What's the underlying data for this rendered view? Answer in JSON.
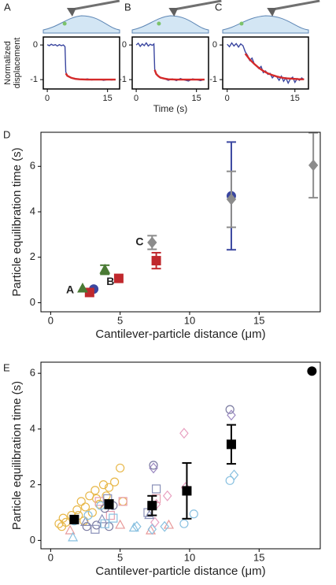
{
  "chart_data": [
    {
      "type": "line",
      "label": "A",
      "ylabel_lines": [
        "Normalized",
        "displacement"
      ],
      "xlim": [
        -1,
        18
      ],
      "xticks": [
        0,
        15
      ],
      "ylim": [
        -1.27,
        0.23
      ],
      "yticks": [
        0,
        -1
      ],
      "series": [
        {
          "color": "#3b47a0",
          "x": [
            0,
            0.5,
            1,
            1.5,
            2,
            2.5,
            3,
            3.5,
            4,
            4.4,
            4.6,
            5,
            6,
            7,
            8,
            9,
            10,
            11,
            12,
            13,
            14,
            15,
            16,
            17
          ],
          "values": [
            0.01,
            -0.02,
            0.02,
            -0.01,
            0.01,
            -0.03,
            0.01,
            -0.02,
            0.0,
            -0.05,
            -0.78,
            -0.88,
            -0.95,
            -0.97,
            -0.99,
            -1.0,
            -0.98,
            -1.01,
            -1.0,
            -0.99,
            -1.02,
            -1.0,
            -1.01,
            -1.0
          ]
        },
        {
          "color": "#d42a2a",
          "x": [
            4.6,
            5,
            6,
            7,
            8,
            10,
            12,
            14,
            16,
            17
          ],
          "values": [
            -0.82,
            -0.89,
            -0.95,
            -0.98,
            -0.99,
            -1.0,
            -1.0,
            -1.0,
            -1.0,
            -1.0
          ]
        }
      ]
    },
    {
      "type": "line",
      "label": "B",
      "xlabel": "Time (s)",
      "xlim": [
        -1,
        18
      ],
      "xticks": [
        0,
        15
      ],
      "ylim": [
        -1.27,
        0.23
      ],
      "yticks": [
        0,
        -1
      ],
      "series": [
        {
          "color": "#3b47a0",
          "x": [
            0,
            0.5,
            1,
            1.5,
            2,
            2.5,
            3,
            3.5,
            4,
            4.4,
            4.6,
            5,
            5.5,
            6,
            7,
            8,
            9,
            10,
            11,
            12,
            13,
            14,
            15,
            16,
            17
          ],
          "values": [
            0.0,
            0.05,
            -0.04,
            0.03,
            -0.02,
            0.06,
            -0.03,
            0.02,
            -0.01,
            0.03,
            -0.7,
            -0.85,
            -0.9,
            -0.95,
            -0.97,
            -1.02,
            -0.98,
            -1.03,
            -0.97,
            -1.01,
            -1.04,
            -0.98,
            -1.0,
            -1.03,
            -0.99
          ]
        },
        {
          "color": "#d42a2a",
          "x": [
            4.6,
            5,
            5.5,
            6,
            7,
            8,
            10,
            12,
            14,
            16,
            17
          ],
          "values": [
            -0.72,
            -0.84,
            -0.9,
            -0.94,
            -0.97,
            -0.99,
            -1.0,
            -1.0,
            -1.0,
            -1.0,
            -1.0
          ]
        }
      ]
    },
    {
      "type": "line",
      "label": "C",
      "xlim": [
        -1,
        18
      ],
      "xticks": [
        0,
        15
      ],
      "ylim": [
        -1.27,
        0.23
      ],
      "yticks": [
        0,
        -1
      ],
      "series": [
        {
          "color": "#3b47a0",
          "x": [
            0,
            0.5,
            1,
            1.5,
            2,
            2.5,
            3,
            3.5,
            4,
            4.5,
            5,
            5.5,
            6,
            6.5,
            7,
            7.5,
            8,
            8.5,
            9,
            9.5,
            10,
            10.5,
            11,
            11.5,
            12,
            12.5,
            13,
            13.5,
            14,
            14.5,
            15,
            15.5,
            16,
            16.5,
            17
          ],
          "values": [
            0.02,
            -0.05,
            0.06,
            -0.03,
            0.04,
            -0.06,
            0.03,
            -0.02,
            -0.2,
            -0.3,
            -0.45,
            -0.38,
            -0.55,
            -0.6,
            -0.68,
            -0.62,
            -0.8,
            -0.75,
            -0.85,
            -0.82,
            -0.95,
            -0.88,
            -0.92,
            -1.02,
            -0.9,
            -1.05,
            -0.95,
            -1.1,
            -0.98,
            -0.93,
            -1.08,
            -0.97,
            -1.02,
            -0.95,
            -1.0
          ]
        },
        {
          "color": "#d42a2a",
          "x": [
            4,
            5,
            6,
            7,
            8,
            9,
            10,
            11,
            12,
            13,
            14,
            15,
            16,
            17
          ],
          "values": [
            -0.25,
            -0.42,
            -0.55,
            -0.66,
            -0.75,
            -0.82,
            -0.87,
            -0.91,
            -0.94,
            -0.96,
            -0.97,
            -0.98,
            -0.99,
            -0.99
          ]
        }
      ]
    },
    {
      "type": "scatter",
      "label": "D",
      "xlabel": "Cantilever-particle distance (μm)",
      "ylabel": "Particle equilibration time (s)",
      "annotations": [
        "A",
        "B",
        "C"
      ],
      "xlim": [
        -0.7,
        19.4
      ],
      "xticks": [
        0,
        5,
        10,
        15
      ],
      "ylim": [
        -0.4,
        7.5
      ],
      "yticks": [
        0,
        2,
        4,
        6
      ],
      "series": [
        {
          "color": "#3b47a0",
          "marker": "circle",
          "filled": true,
          "x": [
            3.1,
            13.0
          ],
          "values": [
            0.6,
            4.7
          ],
          "errors": [
            null,
            2.37
          ]
        },
        {
          "color": "#c0282d",
          "marker": "square",
          "filled": true,
          "x": [
            2.8,
            4.9,
            7.6
          ],
          "values": [
            0.45,
            1.07,
            1.85
          ],
          "errors": [
            null,
            null,
            0.35
          ]
        },
        {
          "color": "#4a7a34",
          "marker": "triangle",
          "filled": true,
          "x": [
            2.3,
            3.9
          ],
          "values": [
            0.62,
            1.45
          ],
          "errors": [
            null,
            0.2
          ]
        },
        {
          "color": "#8c8c8c",
          "marker": "diamond",
          "filled": true,
          "x": [
            7.3,
            13.0,
            18.9
          ],
          "values": [
            2.65,
            4.55,
            6.05
          ],
          "errors": [
            0.3,
            1.23,
            1.43
          ]
        }
      ]
    },
    {
      "type": "scatter",
      "label": "E",
      "xlabel": "Cantilever-particle distance (μm)",
      "ylabel": "Particle equilibration time (s)",
      "xlim": [
        -0.7,
        19.4
      ],
      "xticks": [
        0,
        5,
        10,
        15
      ],
      "ylim": [
        -0.3,
        6.4
      ],
      "yticks": [
        0,
        2,
        4,
        6
      ],
      "series": [
        {
          "color": "#e8b84a",
          "marker": "circle",
          "filled": false,
          "x": [
            0.6,
            0.8,
            0.9,
            1.1,
            1.5,
            1.9,
            2.0,
            2.2,
            2.4,
            2.5,
            2.8,
            3.0,
            3.2,
            3.3,
            3.5,
            3.8,
            4.0,
            4.2,
            4.6,
            5.0,
            5.2
          ],
          "values": [
            0.6,
            0.5,
            0.8,
            0.65,
            0.9,
            1.1,
            0.9,
            1.4,
            0.7,
            1.2,
            1.6,
            1.0,
            1.8,
            1.5,
            1.3,
            2.0,
            1.6,
            1.9,
            2.1,
            2.6,
            1.4
          ]
        },
        {
          "color": "#e8a0b0",
          "marker": "square",
          "filled": false,
          "x": [
            3.5,
            4.3,
            5.2,
            7.6
          ],
          "values": [
            1.4,
            0.9,
            1.4,
            1.5
          ]
        },
        {
          "color": "#e8a0c0",
          "marker": "diamond",
          "filled": false,
          "x": [
            7.5,
            7.6,
            8.4,
            9.6,
            9.7
          ],
          "values": [
            0.65,
            1.3,
            1.6,
            3.85,
            1.9
          ]
        },
        {
          "color": "#e89a9a",
          "marker": "triangle",
          "filled": false,
          "x": [
            1.4,
            5.0,
            7.2,
            8.5
          ],
          "values": [
            0.35,
            0.55,
            0.35,
            0.55
          ]
        },
        {
          "color": "#7a7aa0",
          "marker": "circle",
          "filled": false,
          "x": [
            2.6,
            3.3,
            3.9,
            4.2,
            4.5,
            7.4,
            12.9
          ],
          "values": [
            0.5,
            0.55,
            1.15,
            0.5,
            1.25,
            2.7,
            4.7
          ]
        },
        {
          "color": "#8a90b8",
          "marker": "square",
          "filled": false,
          "x": [
            3.2,
            4.1,
            7.0,
            7.6
          ],
          "values": [
            0.4,
            1.5,
            1.0,
            1.85
          ]
        },
        {
          "color": "#8a90b8",
          "marker": "triangle",
          "filled": false,
          "x": [
            2.5,
            3.7,
            7.1
          ],
          "values": [
            0.65,
            0.75,
            0.9
          ]
        },
        {
          "color": "#9a88c0",
          "marker": "diamond",
          "filled": false,
          "x": [
            7.4,
            13.0
          ],
          "values": [
            2.6,
            4.5
          ]
        },
        {
          "color": "#88c0e0",
          "marker": "circle",
          "filled": false,
          "x": [
            1.7,
            2.7,
            3.6,
            9.6,
            10.3,
            12.9
          ],
          "values": [
            0.7,
            0.9,
            1.25,
            0.6,
            0.95,
            2.15
          ]
        },
        {
          "color": "#88c0e0",
          "marker": "square",
          "filled": false,
          "x": [
            3.9,
            4.5
          ],
          "values": [
            0.6,
            0.8
          ]
        },
        {
          "color": "#88c0e0",
          "marker": "diamond",
          "filled": false,
          "x": [
            6.2,
            7.3,
            8.2,
            13.2
          ],
          "values": [
            0.5,
            0.4,
            0.5,
            2.35
          ]
        },
        {
          "color": "#88c0e0",
          "marker": "triangle",
          "filled": false,
          "x": [
            1.6,
            6.0
          ],
          "values": [
            0.1,
            0.45
          ]
        },
        {
          "color": "#000000",
          "marker": "square",
          "filled": true,
          "x": [
            1.7,
            4.2,
            7.3,
            9.8,
            13.0
          ],
          "values": [
            0.75,
            1.3,
            1.25,
            1.78,
            3.45
          ],
          "errors": [
            null,
            0.15,
            0.35,
            1.0,
            0.7
          ]
        },
        {
          "color": "#000000",
          "marker": "circle",
          "filled": true,
          "x": [
            18.8
          ],
          "values": [
            6.08
          ]
        }
      ]
    }
  ]
}
